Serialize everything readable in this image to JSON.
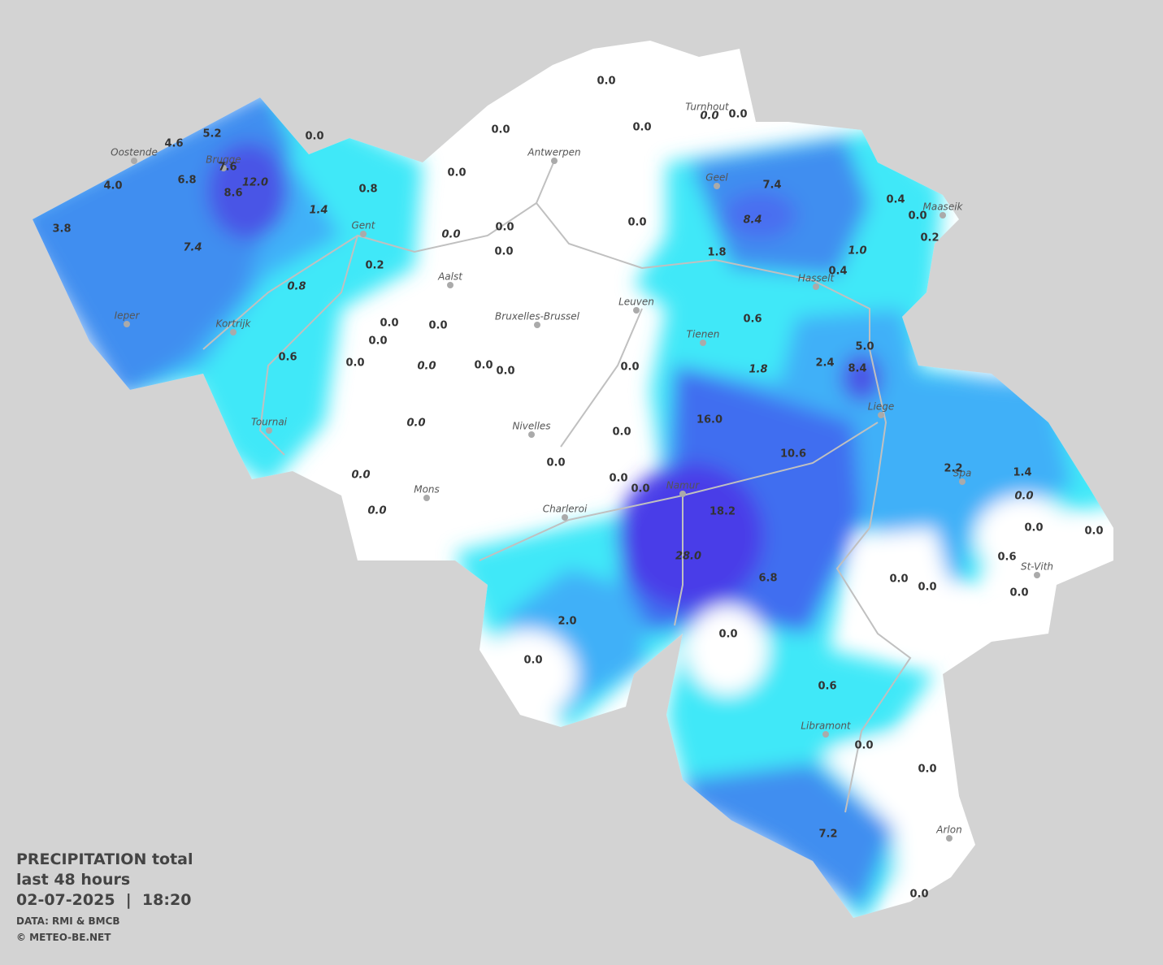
{
  "caption": {
    "title": "PRECIPITATION total",
    "period": "last 48 hours",
    "timestamp": "02-07-2025  |  18:20",
    "source": "DATA: RMI & BMCB",
    "copyright": "© METEO-BE.NET"
  },
  "cities": [
    {
      "name": "Oostende"
    },
    {
      "name": "Brugge"
    },
    {
      "name": "Gent"
    },
    {
      "name": "Antwerpen"
    },
    {
      "name": "Turnhout"
    },
    {
      "name": "Geel"
    },
    {
      "name": "Maaseik"
    },
    {
      "name": "Hasselt"
    },
    {
      "name": "Aalst"
    },
    {
      "name": "Leuven"
    },
    {
      "name": "Bruxelles-Brussel"
    },
    {
      "name": "Tienen"
    },
    {
      "name": "Ieper"
    },
    {
      "name": "Kortrijk"
    },
    {
      "name": "Liege"
    },
    {
      "name": "Tournai"
    },
    {
      "name": "Nivelles"
    },
    {
      "name": "Mons"
    },
    {
      "name": "Charleroi"
    },
    {
      "name": "Namur"
    },
    {
      "name": "Spa"
    },
    {
      "name": "St-Vith"
    },
    {
      "name": "Libramont"
    },
    {
      "name": "Arlon"
    }
  ],
  "stations": [
    {
      "value": "0.0"
    },
    {
      "value": "0.0"
    },
    {
      "value": "0.0"
    },
    {
      "value": "0.0",
      "italic": true
    },
    {
      "value": "0.0"
    },
    {
      "value": "0.0"
    },
    {
      "value": "5.2"
    },
    {
      "value": "4.6"
    },
    {
      "value": "7.6"
    },
    {
      "value": "12.0",
      "italic": true
    },
    {
      "value": "6.8"
    },
    {
      "value": "4.0"
    },
    {
      "value": "8.6"
    },
    {
      "value": "3.8"
    },
    {
      "value": "7.4",
      "italic": true
    },
    {
      "value": "1.4",
      "italic": true
    },
    {
      "value": "0.8"
    },
    {
      "value": "0.0"
    },
    {
      "value": "7.4"
    },
    {
      "value": "8.4",
      "italic": true
    },
    {
      "value": "0.4"
    },
    {
      "value": "0.0"
    },
    {
      "value": "0.2"
    },
    {
      "value": "0.0"
    },
    {
      "value": "0.0",
      "italic": true
    },
    {
      "value": "0.0"
    },
    {
      "value": "0.0"
    },
    {
      "value": "1.8"
    },
    {
      "value": "1.0",
      "italic": true
    },
    {
      "value": "0.4"
    },
    {
      "value": "0.2"
    },
    {
      "value": "0.8",
      "italic": true
    },
    {
      "value": "0.6"
    },
    {
      "value": "0.0"
    },
    {
      "value": "0.0"
    },
    {
      "value": "0.0"
    },
    {
      "value": "0.0"
    },
    {
      "value": "0.0",
      "italic": true
    },
    {
      "value": "0.0"
    },
    {
      "value": "0.0"
    },
    {
      "value": "0.0"
    },
    {
      "value": "0.6"
    },
    {
      "value": "1.8",
      "italic": true
    },
    {
      "value": "2.4"
    },
    {
      "value": "5.0"
    },
    {
      "value": "8.4"
    },
    {
      "value": "16.0"
    },
    {
      "value": "0.0",
      "italic": true
    },
    {
      "value": "0.0"
    },
    {
      "value": "10.6"
    },
    {
      "value": "0.0"
    },
    {
      "value": "0.0",
      "italic": true
    },
    {
      "value": "0.0"
    },
    {
      "value": "0.0"
    },
    {
      "value": "0.0",
      "italic": true
    },
    {
      "value": "18.2"
    },
    {
      "value": "2.2"
    },
    {
      "value": "1.4"
    },
    {
      "value": "0.0",
      "italic": true
    },
    {
      "value": "0.0"
    },
    {
      "value": "0.0"
    },
    {
      "value": "28.0",
      "italic": true
    },
    {
      "value": "0.6"
    },
    {
      "value": "6.8"
    },
    {
      "value": "0.0"
    },
    {
      "value": "0.0"
    },
    {
      "value": "0.0"
    },
    {
      "value": "2.0"
    },
    {
      "value": "0.0"
    },
    {
      "value": "0.0"
    },
    {
      "value": "0.6"
    },
    {
      "value": "0.0"
    },
    {
      "value": "0.0"
    },
    {
      "value": "7.2"
    },
    {
      "value": "0.0"
    }
  ]
}
